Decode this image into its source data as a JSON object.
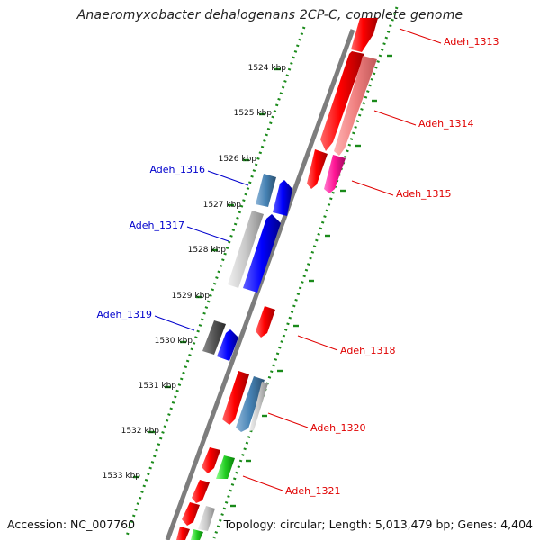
{
  "title": "Anaeromyxobacter dehalogenans 2CP-C, complete genome",
  "footer": {
    "accession": "Accession: NC_007760",
    "summary": "Topology: circular; Length: 5,013,479 bp; Genes: 4,404"
  },
  "ticks": [
    "1524 kbp",
    "1525 kbp",
    "1526 kbp",
    "1527 kbp",
    "1528 kbp",
    "1529 kbp",
    "1530 kbp",
    "1531 kbp",
    "1532 kbp",
    "1533 kbp"
  ],
  "labels": {
    "reverse": [
      "Adeh_1316",
      "Adeh_1317",
      "Adeh_1319"
    ],
    "forward": [
      "Adeh_1313",
      "Adeh_1314",
      "Adeh_1315",
      "Adeh_1318",
      "Adeh_1320",
      "Adeh_1321"
    ]
  },
  "colors": {
    "forward_label": "#e00000",
    "reverse_label": "#0000cc",
    "tick_dots": "#1a8a1a",
    "backbone": "#808080"
  }
}
